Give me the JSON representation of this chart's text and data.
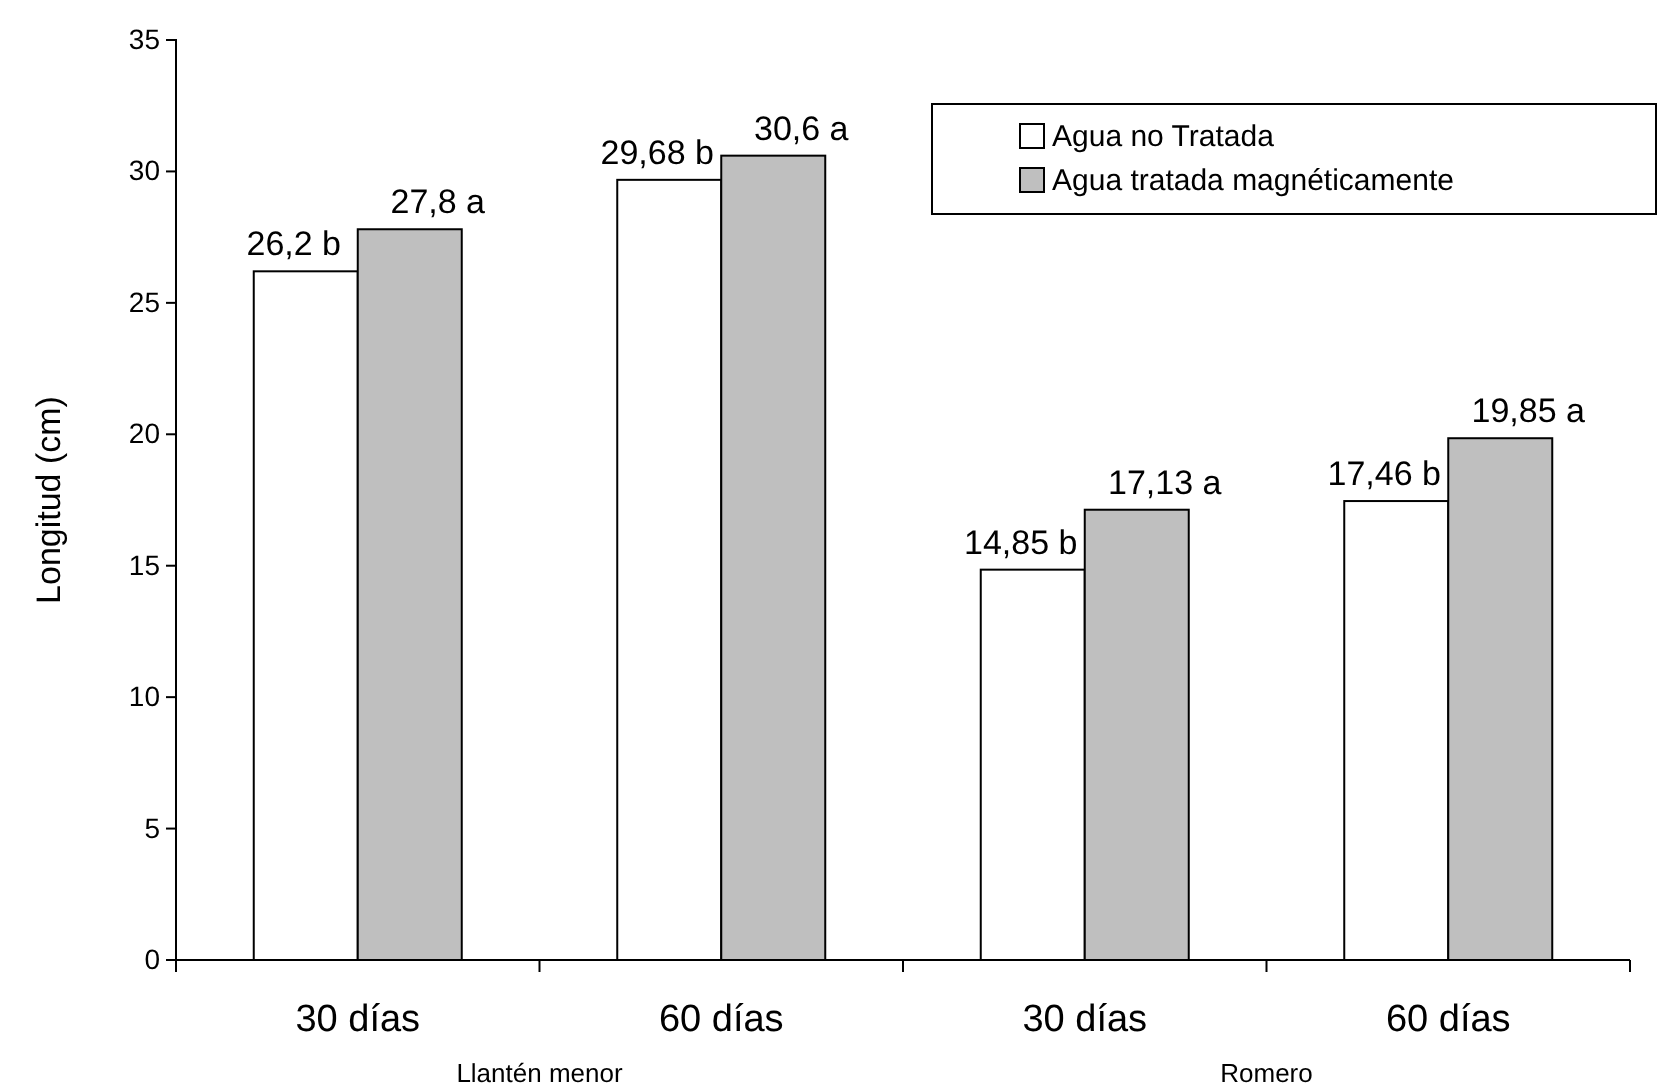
{
  "chart_data": {
    "type": "bar",
    "ylabel": "Longitud (cm)",
    "categories": [
      "30 días",
      "60 días",
      "30 días",
      "60 días"
    ],
    "series": [
      {
        "name": "Agua no Tratada",
        "color": "#ffffff",
        "values": [
          26.2,
          29.68,
          14.85,
          17.46
        ],
        "value_labels": [
          "26,2 b",
          "29,68 b",
          "14,85 b",
          "17,46 b"
        ]
      },
      {
        "name": "Agua tratada magnéticamente",
        "color": "#bfbfbf",
        "values": [
          27.8,
          30.6,
          17.13,
          19.85
        ],
        "value_labels": [
          "27,8 a",
          "30,6 a",
          "17,13 a",
          "19,85 a"
        ]
      }
    ],
    "annotations": [
      "Llantén menor",
      "Romero"
    ],
    "ylim": [
      0,
      35
    ],
    "yticks": [
      0,
      5,
      10,
      15,
      20,
      25,
      30,
      35
    ],
    "grid": false,
    "legend": "top right"
  }
}
